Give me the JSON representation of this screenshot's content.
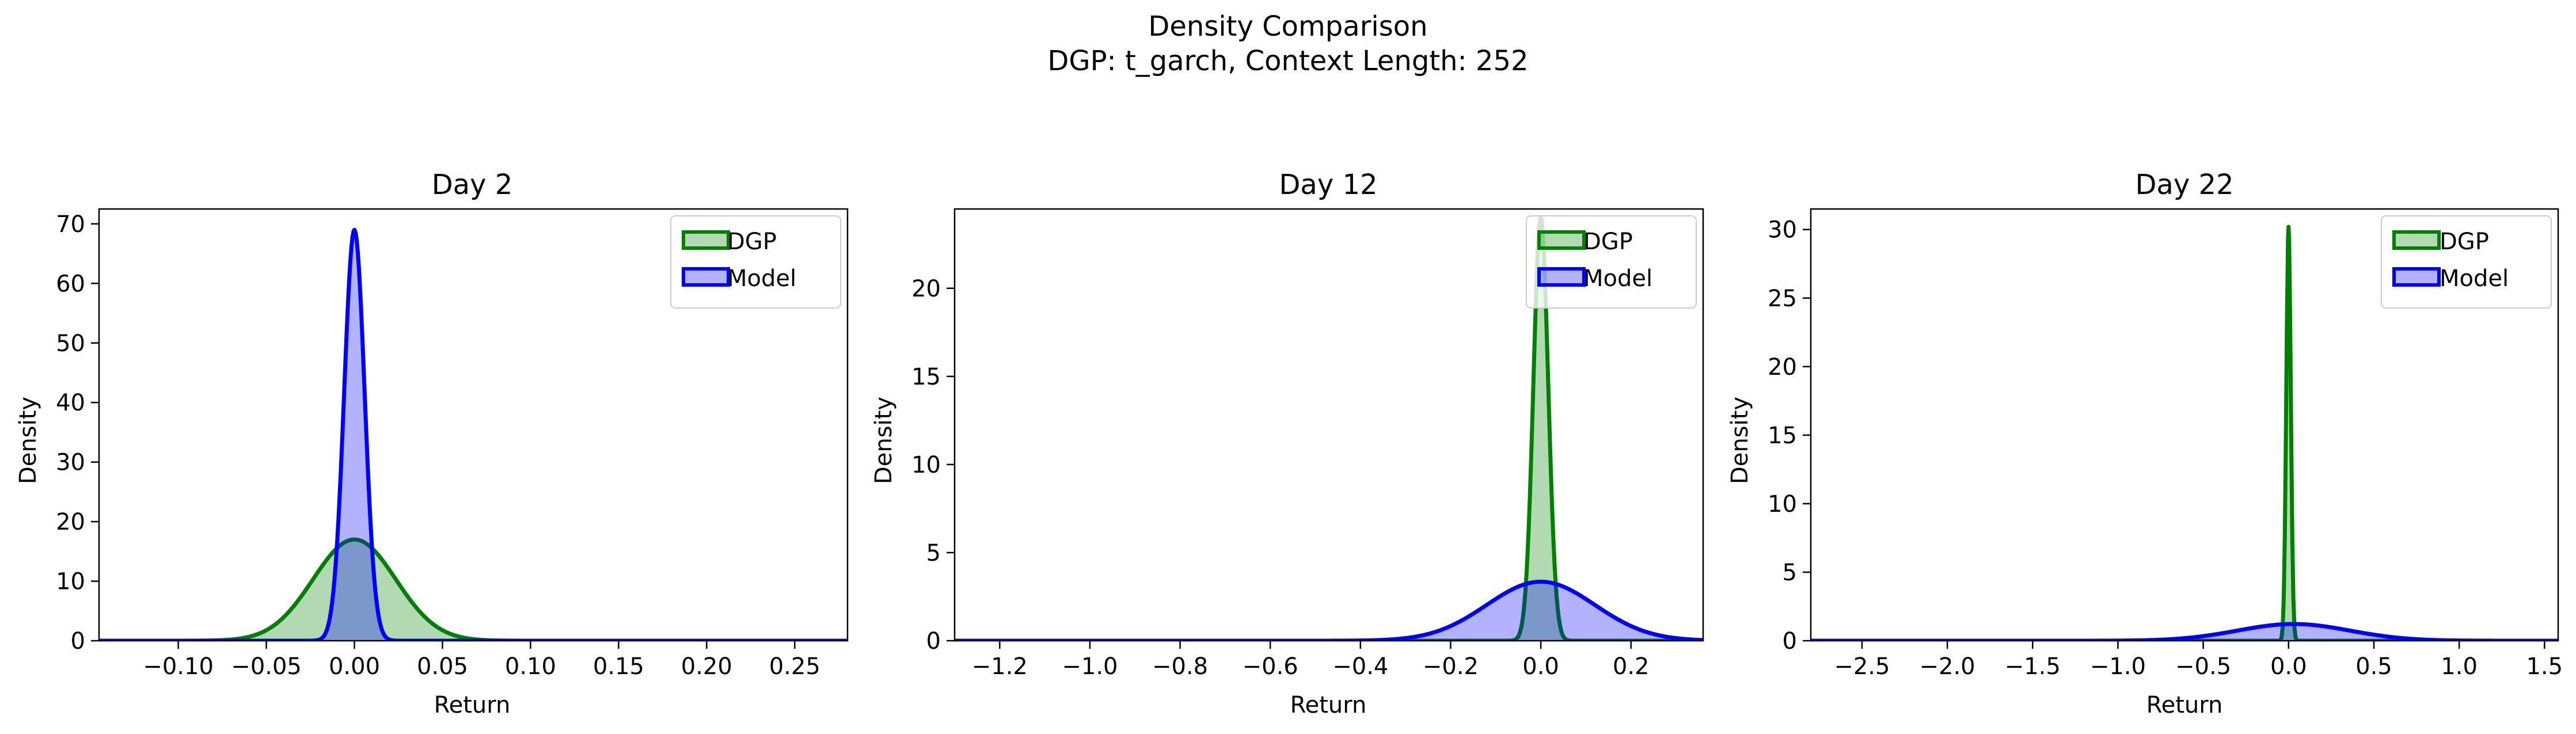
{
  "figure": {
    "title_line1": "Density Comparison",
    "title_line2": "DGP: t_garch, Context Length: 252"
  },
  "colors": {
    "dgp": "#008000",
    "model": "#0000ff"
  },
  "chart_data": [
    {
      "type": "area",
      "title": "Day 2",
      "xlabel": "Return",
      "ylabel": "Density",
      "xlim": [
        -0.145,
        0.28
      ],
      "ylim": [
        0,
        72.5
      ],
      "xticks": [
        -0.1,
        -0.05,
        0.0,
        0.05,
        0.1,
        0.15,
        0.2,
        0.25
      ],
      "xtick_labels": [
        "−0.10",
        "−0.05",
        "0.00",
        "0.05",
        "0.10",
        "0.15",
        "0.20",
        "0.25"
      ],
      "yticks": [
        0,
        10,
        20,
        30,
        40,
        50,
        60,
        70
      ],
      "ytick_labels": [
        "0",
        "10",
        "20",
        "30",
        "40",
        "50",
        "60",
        "70"
      ],
      "legend": "top-right",
      "grid": false,
      "series": [
        {
          "name": "DGP",
          "peak_x": 0.0,
          "peak_density": 17.0,
          "std": 0.0235
        },
        {
          "name": "Model",
          "peak_x": 0.0,
          "peak_density": 69.0,
          "std": 0.0058
        }
      ]
    },
    {
      "type": "area",
      "title": "Day 12",
      "xlabel": "Return",
      "ylabel": "Density",
      "xlim": [
        -1.3,
        0.36
      ],
      "ylim": [
        0,
        24.5
      ],
      "xticks": [
        -1.2,
        -1.0,
        -0.8,
        -0.6,
        -0.4,
        -0.2,
        0.0,
        0.2
      ],
      "xtick_labels": [
        "−1.2",
        "−1.0",
        "−0.8",
        "−0.6",
        "−0.4",
        "−0.2",
        "0.0",
        "0.2"
      ],
      "yticks": [
        0,
        5,
        10,
        15,
        20
      ],
      "ytick_labels": [
        "0",
        "5",
        "10",
        "15",
        "20"
      ],
      "legend": "top-right",
      "grid": false,
      "series": [
        {
          "name": "DGP",
          "peak_x": 0.0,
          "peak_density": 24.0,
          "std": 0.0165
        },
        {
          "name": "Model",
          "peak_x": 0.0,
          "peak_density": 3.35,
          "std": 0.12
        }
      ]
    },
    {
      "type": "area",
      "title": "Day 22",
      "xlabel": "Return",
      "ylabel": "Density",
      "xlim": [
        -2.8,
        1.58
      ],
      "ylim": [
        0,
        31.5
      ],
      "xticks": [
        -2.5,
        -2.0,
        -1.5,
        -1.0,
        -0.5,
        0.0,
        0.5,
        1.0,
        1.5
      ],
      "xtick_labels": [
        "−2.5",
        "−2.0",
        "−1.5",
        "−1.0",
        "−0.5",
        "0.0",
        "0.5",
        "1.0",
        "1.5"
      ],
      "yticks": [
        0,
        5,
        10,
        15,
        20,
        25,
        30
      ],
      "ytick_labels": [
        "0",
        "5",
        "10",
        "15",
        "20",
        "25",
        "30"
      ],
      "legend": "top-right",
      "grid": false,
      "series": [
        {
          "name": "DGP",
          "peak_x": 0.0,
          "peak_density": 30.2,
          "std": 0.0132
        },
        {
          "name": "Model",
          "peak_x": 0.03,
          "peak_density": 1.22,
          "std": 0.33
        }
      ]
    }
  ]
}
